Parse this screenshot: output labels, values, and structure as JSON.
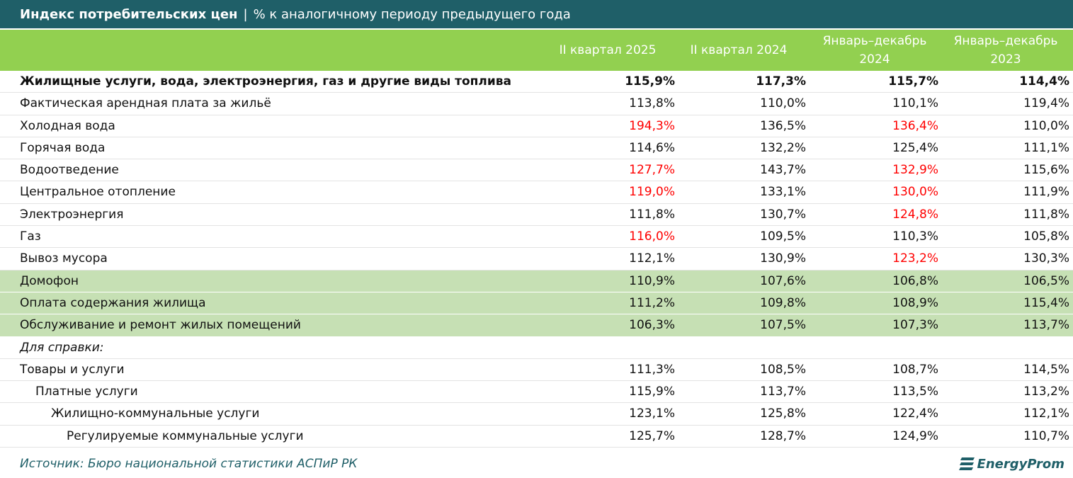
{
  "header": {
    "title": "Индекс потребительских цен",
    "separator": "|",
    "subtitle": "% к аналогичному периоду предыдущего года"
  },
  "table": {
    "columns": [
      "II квартал 2025",
      "II квартал 2024",
      "Январь–декабрь 2024",
      "Январь–декабрь 2023"
    ],
    "rows": [
      {
        "label": "Жилищные услуги, вода, электроэнергия, газ и другие виды топлива",
        "values": [
          "115,9%",
          "117,3%",
          "115,7%",
          "114,4%"
        ],
        "style": "bold"
      },
      {
        "label": "Фактическая арендная плата за жильё",
        "values": [
          "113,8%",
          "110,0%",
          "110,1%",
          "119,4%"
        ]
      },
      {
        "label": "Холодная вода",
        "values": [
          "194,3%",
          "136,5%",
          "136,4%",
          "110,0%"
        ],
        "red_cells": [
          0,
          2
        ]
      },
      {
        "label": "Горячая вода",
        "values": [
          "114,6%",
          "132,2%",
          "125,4%",
          "111,1%"
        ]
      },
      {
        "label": "Водоотведение",
        "values": [
          "127,7%",
          "143,7%",
          "132,9%",
          "115,6%"
        ],
        "red_cells": [
          0,
          2
        ]
      },
      {
        "label": "Центральное отопление",
        "values": [
          "119,0%",
          "133,1%",
          "130,0%",
          "111,9%"
        ],
        "red_cells": [
          0,
          2
        ]
      },
      {
        "label": "Электроэнергия",
        "values": [
          "111,8%",
          "130,7%",
          "124,8%",
          "111,8%"
        ],
        "red_cells": [
          2
        ]
      },
      {
        "label": "Газ",
        "values": [
          "116,0%",
          "109,5%",
          "110,3%",
          "105,8%"
        ],
        "red_cells": [
          0
        ]
      },
      {
        "label": "Вывоз мусора",
        "values": [
          "112,1%",
          "130,9%",
          "123,2%",
          "130,3%"
        ],
        "red_cells": [
          2
        ]
      },
      {
        "label": "Домофон",
        "values": [
          "110,9%",
          "107,6%",
          "106,8%",
          "106,5%"
        ],
        "style": "green"
      },
      {
        "label": "Оплата содержания жилища",
        "values": [
          "111,2%",
          "109,8%",
          "108,9%",
          "115,4%"
        ],
        "style": "green"
      },
      {
        "label": "Обслуживание и ремонт жилых помещений",
        "values": [
          "106,3%",
          "107,5%",
          "107,3%",
          "113,7%"
        ],
        "style": "green"
      },
      {
        "label": "Для справки:",
        "values": [],
        "style": "italic"
      },
      {
        "label": "Товары и услуги",
        "values": [
          "111,3%",
          "108,5%",
          "108,7%",
          "114,5%"
        ]
      },
      {
        "label": "Платные услуги",
        "values": [
          "115,9%",
          "113,7%",
          "113,5%",
          "113,2%"
        ],
        "level": 1
      },
      {
        "label": "Жилищно-коммунальные услуги",
        "values": [
          "123,1%",
          "125,8%",
          "122,4%",
          "112,1%"
        ],
        "level": 2
      },
      {
        "label": "Регулируемые коммунальные услуги",
        "values": [
          "125,7%",
          "128,7%",
          "124,9%",
          "110,7%"
        ],
        "level": 3
      }
    ]
  },
  "footer": {
    "source": "Источник: Бюро национальной статистики АСПиР РК",
    "logo": "EnergyProm"
  }
}
